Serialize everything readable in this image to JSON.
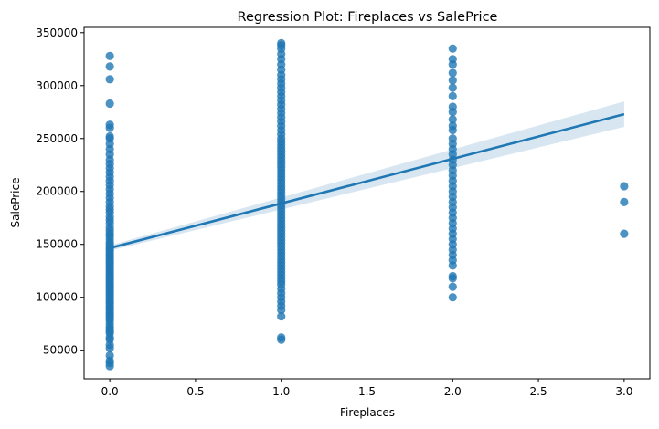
{
  "chart_data": {
    "type": "scatter",
    "title": "Regression Plot: Fireplaces vs SalePrice",
    "xlabel": "Fireplaces",
    "ylabel": "SalePrice",
    "xlim": [
      -0.15,
      3.15
    ],
    "ylim": [
      23000,
      355000
    ],
    "xticks": [
      0.0,
      0.5,
      1.0,
      1.5,
      2.0,
      2.5,
      3.0
    ],
    "xtick_labels": [
      "0.0",
      "0.5",
      "1.0",
      "1.5",
      "2.0",
      "2.5",
      "3.0"
    ],
    "yticks": [
      50000,
      100000,
      150000,
      200000,
      250000,
      300000,
      350000
    ],
    "ytick_labels": [
      "50000",
      "100000",
      "150000",
      "200000",
      "250000",
      "300000",
      "350000"
    ],
    "grid": false,
    "point_color": "#1f77b4",
    "line_color": "#1f77b4",
    "band_color": "#1f77b4",
    "series": [
      {
        "x": 0,
        "values": [
          35000,
          38000,
          40000,
          45000,
          52000,
          55000,
          60000,
          62000,
          66000,
          68000,
          70000,
          72000,
          75000,
          78000,
          80000,
          82000,
          84000,
          86000,
          88000,
          90000,
          92000,
          94000,
          96000,
          98000,
          100000,
          102000,
          104000,
          106000,
          108000,
          110000,
          112000,
          114000,
          116000,
          118000,
          120000,
          122000,
          124000,
          126000,
          128000,
          130000,
          132000,
          134000,
          136000,
          138000,
          140000,
          142000,
          144000,
          146000,
          148000,
          150000,
          152000,
          155000,
          158000,
          160000,
          163000,
          166000,
          170000,
          173000,
          176000,
          180000,
          183000,
          186000,
          190000,
          194000,
          198000,
          202000,
          206000,
          210000,
          214000,
          218000,
          222000,
          226000,
          230000,
          235000,
          240000,
          245000,
          250000,
          252000,
          260000,
          263000,
          283000,
          306000,
          318000,
          328000
        ]
      },
      {
        "x": 1,
        "values": [
          60000,
          62000,
          82000,
          88000,
          92000,
          96000,
          100000,
          104000,
          108000,
          112000,
          115000,
          118000,
          121000,
          124000,
          127000,
          130000,
          133000,
          136000,
          139000,
          142000,
          145000,
          148000,
          151000,
          154000,
          157000,
          160000,
          163000,
          166000,
          169000,
          172000,
          175000,
          178000,
          181000,
          184000,
          187000,
          190000,
          193000,
          196000,
          199000,
          202000,
          205000,
          208000,
          211000,
          214000,
          217000,
          220000,
          223000,
          226000,
          229000,
          232000,
          235000,
          238000,
          241000,
          244000,
          247000,
          250000,
          254000,
          258000,
          262000,
          266000,
          270000,
          274000,
          278000,
          282000,
          286000,
          290000,
          294000,
          298000,
          302000,
          306000,
          310000,
          315000,
          320000,
          325000,
          330000,
          335000,
          338000,
          340000
        ]
      },
      {
        "x": 2,
        "values": [
          100000,
          110000,
          118000,
          120000,
          130000,
          135000,
          140000,
          145000,
          150000,
          155000,
          160000,
          165000,
          170000,
          175000,
          180000,
          185000,
          190000,
          195000,
          200000,
          205000,
          210000,
          215000,
          220000,
          225000,
          230000,
          235000,
          240000,
          245000,
          250000,
          258000,
          262000,
          268000,
          275000,
          280000,
          290000,
          298000,
          305000,
          312000,
          320000,
          325000,
          335000
        ]
      },
      {
        "x": 3,
        "values": [
          160000,
          190000,
          205000
        ]
      }
    ],
    "regression": {
      "x": [
        0,
        3
      ],
      "y": [
        146500,
        273000
      ],
      "ci_lower": [
        144000,
        261000
      ],
      "ci_upper": [
        149000,
        285000
      ]
    }
  }
}
